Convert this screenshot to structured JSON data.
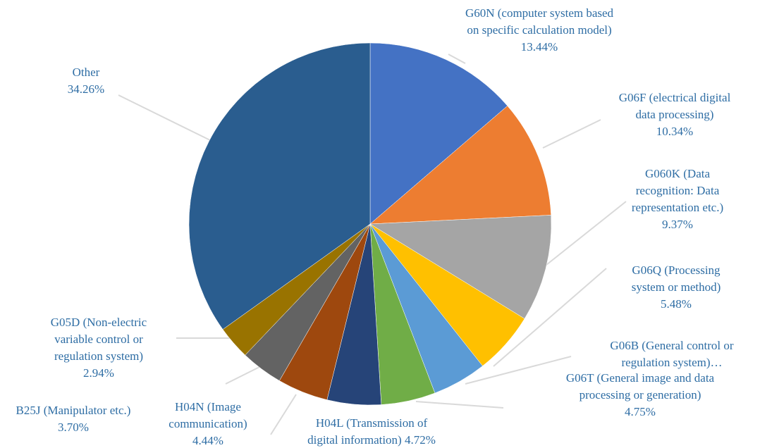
{
  "chart_data": {
    "type": "pie",
    "title": "",
    "label_color": "#2e6da4",
    "slices": [
      {
        "name": "G60N (computer system based on specific calculation model)",
        "label_lines": [
          "G60N (computer system based",
          "on specific calculation model)"
        ],
        "value_label": "13.44%",
        "value": 13.44,
        "color": "#4472c4"
      },
      {
        "name": "G06F (electrical digital data processing)",
        "label_lines": [
          "G06F (electrical digital",
          "data processing)"
        ],
        "value_label": "10.34%",
        "value": 10.34,
        "color": "#ed7d31"
      },
      {
        "name": "G060K (Data recognition: Data representation etc.)",
        "label_lines": [
          "G060K (Data",
          "recognition: Data",
          "representation etc.)"
        ],
        "value_label": "9.37%",
        "value": 9.37,
        "color": "#a5a5a5"
      },
      {
        "name": "G06Q (Processing system or method)",
        "label_lines": [
          "G06Q (Processing",
          "system or method)"
        ],
        "value_label": "5.48%",
        "value": 5.48,
        "color": "#ffc000"
      },
      {
        "name": "G06T (General image and data processing or generation)",
        "label_lines": [
          "G06T (General image and data",
          "processing or generation)"
        ],
        "value_label": "4.75%",
        "value": 4.75,
        "color": "#5b9bd5"
      },
      {
        "name": "G06B (General control or regulation system)",
        "label_lines": [
          "G06B (General control or",
          "regulation system)…"
        ],
        "value_label": "",
        "value": 4.75,
        "color": "#70ad47"
      },
      {
        "name": "H04L (Transmission of digital information)",
        "label_lines": [
          "H04L (Transmission of",
          "digital information) 4.72%"
        ],
        "value_label": "",
        "value": 4.72,
        "color": "#264478"
      },
      {
        "name": "H04N (Image communication)",
        "label_lines": [
          "H04N (Image",
          "communication)"
        ],
        "value_label": "4.44%",
        "value": 4.44,
        "color": "#9e480e"
      },
      {
        "name": "B25J (Manipulator etc.)",
        "label_lines": [
          "B25J (Manipulator etc.)"
        ],
        "value_label": "3.70%",
        "value": 3.7,
        "color": "#636363"
      },
      {
        "name": "G05D (Non-electric variable control or regulation system)",
        "label_lines": [
          "G05D (Non-electric",
          "variable control or",
          "regulation system)"
        ],
        "value_label": "2.94%",
        "value": 2.94,
        "color": "#997300"
      },
      {
        "name": "Other",
        "label_lines": [
          "Other"
        ],
        "value_label": "34.26%",
        "value": 34.26,
        "color": "#2a5d8f"
      }
    ]
  }
}
